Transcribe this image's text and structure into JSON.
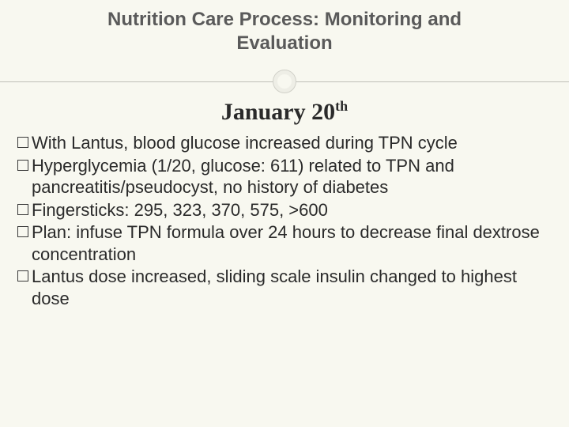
{
  "header": {
    "title_line1": "Nutrition Care Process:  Monitoring and",
    "title_line2": "Evaluation"
  },
  "subtitle": {
    "main": "January 20",
    "sup": "th"
  },
  "bullets": [
    "With Lantus, blood glucose increased during TPN cycle",
    "Hyperglycemia (1/20, glucose:  611) related to TPN and pancreatitis/pseudocyst, no history of diabetes",
    "Fingersticks:  295, 323, 370, 575, >600",
    "Plan: infuse TPN formula over 24 hours to decrease final dextrose concentration",
    "Lantus dose increased, sliding scale insulin changed to highest dose"
  ],
  "colors": {
    "background": "#f8f8f0",
    "header_text": "#5a5a5a",
    "body_text": "#2a2a2a",
    "divider": "#bfbfb8",
    "circle_border": "#eeeee6"
  },
  "typography": {
    "header_fontsize": 24,
    "subtitle_fontsize": 30,
    "body_fontsize": 22,
    "header_weight": "bold",
    "subtitle_family": "Georgia serif"
  }
}
